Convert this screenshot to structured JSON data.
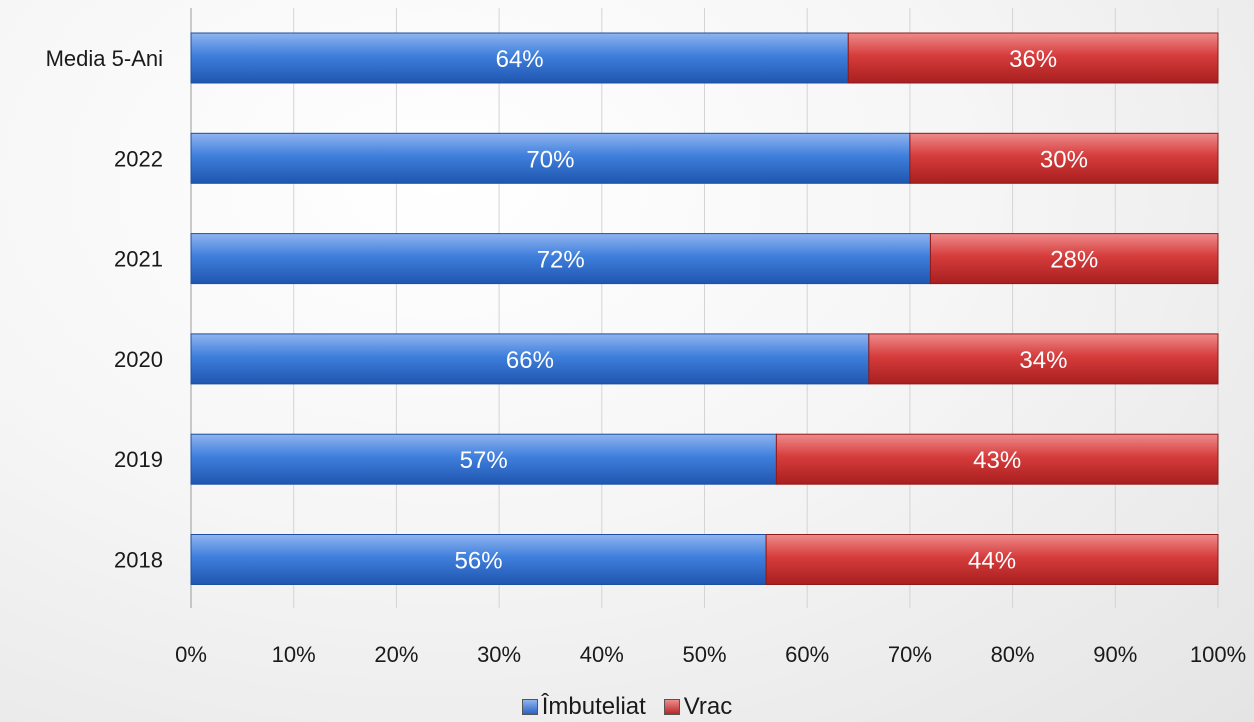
{
  "chart_data": {
    "type": "bar",
    "orientation": "horizontal",
    "stacked": true,
    "categories": [
      "Media 5-Ani",
      "2022",
      "2021",
      "2020",
      "2019",
      "2018"
    ],
    "series": [
      {
        "name": "Îmbuteliat",
        "color": "#3c78d8",
        "values": [
          64,
          70,
          72,
          66,
          57,
          56
        ],
        "labels": [
          "64%",
          "70%",
          "72%",
          "66%",
          "57%",
          "56%"
        ]
      },
      {
        "name": "Vrac",
        "color": "#d43a3a",
        "values": [
          36,
          30,
          28,
          34,
          43,
          44
        ],
        "labels": [
          "36%",
          "30%",
          "28%",
          "34%",
          "43%",
          "44%"
        ]
      }
    ],
    "xlim": [
      0,
      100
    ],
    "x_ticks": [
      "0%",
      "10%",
      "20%",
      "30%",
      "40%",
      "50%",
      "60%",
      "70%",
      "80%",
      "90%",
      "100%"
    ],
    "grid": "vertical",
    "legend_position": "bottom"
  }
}
